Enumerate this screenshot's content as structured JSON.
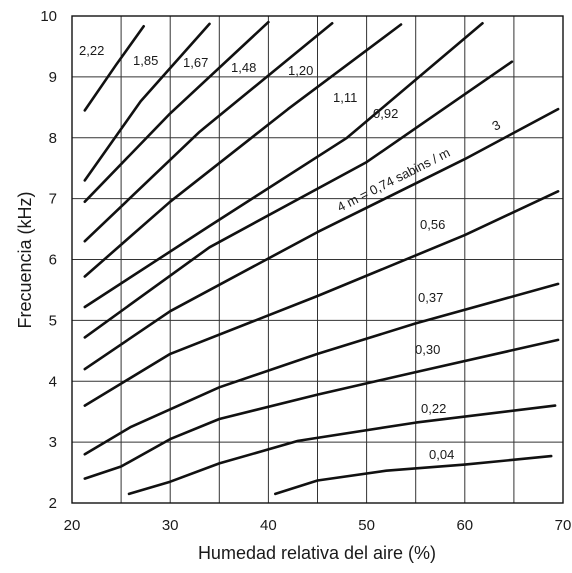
{
  "chart_data": {
    "type": "line",
    "title": "",
    "xlabel": "Humedad relativa del aire  (%)",
    "ylabel": "Frecuencia (kHz)",
    "xlim": [
      20,
      70
    ],
    "ylim": [
      2,
      10
    ],
    "x_ticks": [
      "20",
      "30",
      "40",
      "50",
      "60",
      "70"
    ],
    "y_ticks": [
      "2",
      "3",
      "4",
      "5",
      "6",
      "7",
      "8",
      "9",
      "10"
    ],
    "grid": true,
    "grid_x_step": 5,
    "grid_y_step": 1,
    "annotation_unit": "4 m = 0,74  sabins / m",
    "annotation_superscript": "3",
    "series": [
      {
        "label": "2,22",
        "x": [
          21.3,
          24.5,
          27.3
        ],
        "y": [
          8.45,
          9.2,
          9.83
        ]
      },
      {
        "label": "1,85",
        "x": [
          21.3,
          27.0,
          34.0
        ],
        "y": [
          7.3,
          8.6,
          9.87
        ]
      },
      {
        "label": "1,67",
        "x": [
          21.3,
          30.0,
          40.0
        ],
        "y": [
          6.95,
          8.4,
          9.9
        ]
      },
      {
        "label": "1,48",
        "x": [
          21.3,
          33.0,
          46.5
        ],
        "y": [
          6.3,
          8.1,
          9.88
        ]
      },
      {
        "label": "1,20",
        "x": [
          21.3,
          30.0,
          42.0,
          53.5
        ],
        "y": [
          5.72,
          6.95,
          8.47,
          9.86
        ]
      },
      {
        "label": "1,11",
        "x": [
          21.3,
          34.0,
          48.0,
          61.8
        ],
        "y": [
          5.22,
          6.55,
          8.0,
          9.88
        ]
      },
      {
        "label": "0,92",
        "x": [
          21.3,
          34.0,
          50.0,
          64.8
        ],
        "y": [
          4.72,
          6.2,
          7.6,
          9.25
        ]
      },
      {
        "label": "0,74",
        "x": [
          21.3,
          30.0,
          45.0,
          60.0,
          69.5
        ],
        "y": [
          4.2,
          5.15,
          6.45,
          7.65,
          8.47
        ]
      },
      {
        "label": "0,56",
        "x": [
          21.3,
          30.0,
          45.0,
          60.0,
          69.5
        ],
        "y": [
          3.6,
          4.45,
          5.4,
          6.4,
          7.12
        ]
      },
      {
        "label": "0,37",
        "x": [
          21.3,
          26.0,
          35.0,
          45.0,
          55.0,
          69.5
        ],
        "y": [
          2.8,
          3.25,
          3.9,
          4.45,
          4.95,
          5.6
        ]
      },
      {
        "label": "0,30",
        "x": [
          21.3,
          25.0,
          30.0,
          35.0,
          45.0,
          55.0,
          69.5
        ],
        "y": [
          2.4,
          2.6,
          3.05,
          3.38,
          3.78,
          4.15,
          4.68
        ]
      },
      {
        "label": "0,22",
        "x": [
          25.8,
          30.0,
          35.0,
          43.0,
          55.0,
          69.2
        ],
        "y": [
          2.15,
          2.35,
          2.65,
          3.02,
          3.32,
          3.6
        ]
      },
      {
        "label": "0,04",
        "x": [
          40.7,
          45.0,
          52.0,
          60.0,
          68.8
        ],
        "y": [
          2.15,
          2.37,
          2.53,
          2.63,
          2.77
        ]
      }
    ]
  }
}
